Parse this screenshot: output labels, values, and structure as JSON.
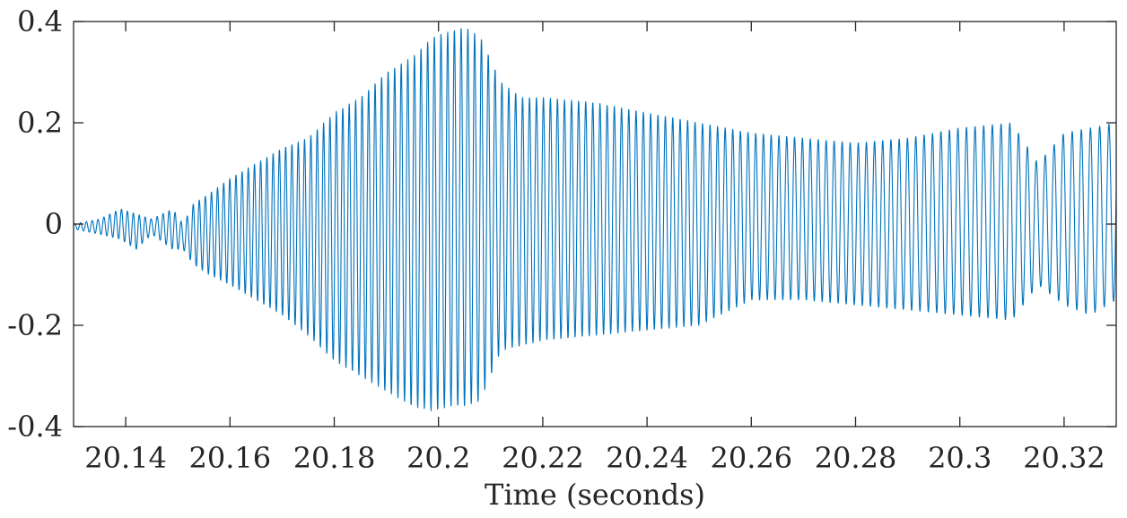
{
  "chart_data": {
    "type": "line",
    "title": "",
    "xlabel": "Time (seconds)",
    "ylabel": "",
    "xlim": [
      20.13,
      20.33
    ],
    "ylim": [
      -0.4,
      0.4
    ],
    "grid": false,
    "legend": "none",
    "line_color": "#0072BD",
    "axis_color": "#262626",
    "x_ticks": [
      {
        "value": 20.14,
        "label": "20.14"
      },
      {
        "value": 20.16,
        "label": "20.16"
      },
      {
        "value": 20.18,
        "label": "20.18"
      },
      {
        "value": 20.2,
        "label": "20.2"
      },
      {
        "value": 20.22,
        "label": "20.22"
      },
      {
        "value": 20.24,
        "label": "20.24"
      },
      {
        "value": 20.26,
        "label": "20.26"
      },
      {
        "value": 20.28,
        "label": "20.28"
      },
      {
        "value": 20.3,
        "label": "20.3"
      },
      {
        "value": 20.32,
        "label": "20.32"
      }
    ],
    "y_ticks": [
      {
        "value": 0.4,
        "label": "0.4"
      },
      {
        "value": 0.2,
        "label": "0.2"
      },
      {
        "value": 0,
        "label": "0"
      },
      {
        "value": -0.2,
        "label": "-0.2"
      },
      {
        "value": -0.4,
        "label": "-0.4"
      }
    ],
    "series": [
      {
        "signal_model": "oscillation",
        "sample_count": 4000,
        "frequency_start_hz": 900,
        "frequency_end_hz": 560,
        "envelope": {
          "x": [
            20.13,
            20.135,
            20.139,
            20.142,
            20.145,
            20.149,
            20.151,
            20.153,
            20.156,
            20.16,
            20.165,
            20.17,
            20.175,
            20.18,
            20.185,
            20.19,
            20.195,
            20.199,
            20.202,
            20.205,
            20.208,
            20.212,
            20.216,
            20.22,
            20.23,
            20.24,
            20.25,
            20.26,
            20.27,
            20.28,
            20.29,
            20.3,
            20.31,
            20.315,
            20.32,
            20.325,
            20.33
          ],
          "upper": [
            0.0,
            0.01,
            0.03,
            0.02,
            0.01,
            0.03,
            0.0,
            0.04,
            0.06,
            0.09,
            0.12,
            0.15,
            0.17,
            0.22,
            0.25,
            0.3,
            0.33,
            0.37,
            0.38,
            0.39,
            0.37,
            0.28,
            0.25,
            0.25,
            0.24,
            0.22,
            0.2,
            0.18,
            0.17,
            0.16,
            0.17,
            0.19,
            0.2,
            0.12,
            0.18,
            0.19,
            0.2
          ],
          "lower": [
            -0.01,
            -0.02,
            -0.03,
            -0.05,
            -0.02,
            -0.05,
            -0.05,
            -0.08,
            -0.1,
            -0.12,
            -0.15,
            -0.18,
            -0.22,
            -0.27,
            -0.3,
            -0.33,
            -0.36,
            -0.37,
            -0.36,
            -0.36,
            -0.35,
            -0.25,
            -0.24,
            -0.23,
            -0.22,
            -0.21,
            -0.2,
            -0.15,
            -0.15,
            -0.16,
            -0.17,
            -0.18,
            -0.19,
            -0.12,
            -0.16,
            -0.18,
            -0.15
          ]
        }
      }
    ]
  }
}
